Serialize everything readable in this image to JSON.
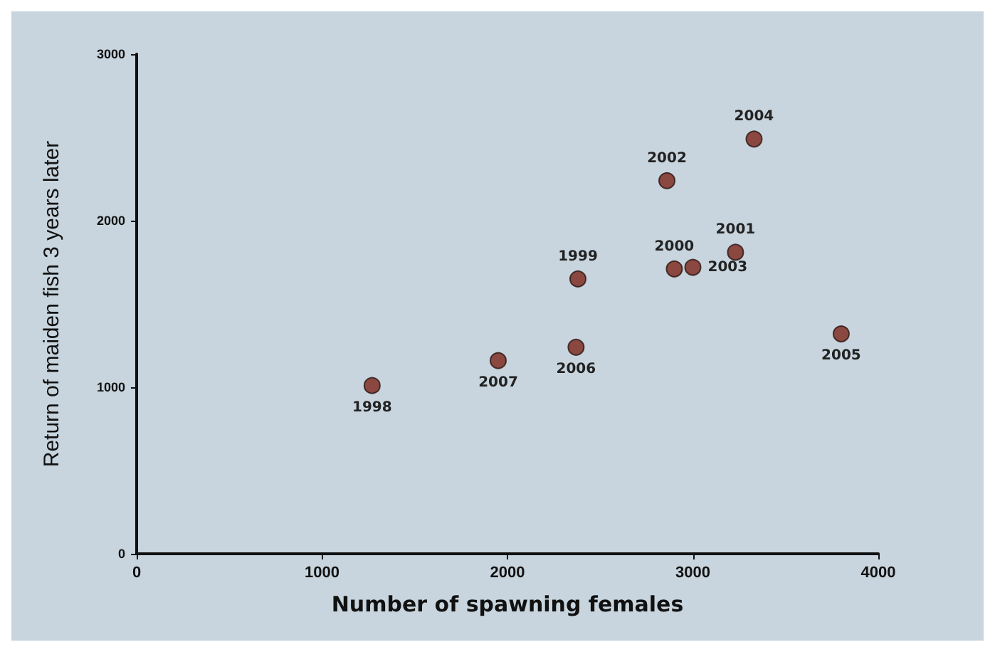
{
  "chart_data": {
    "type": "scatter",
    "xlabel": "Number of spawning females",
    "ylabel": "Return of maiden fish 3 years later",
    "series": [
      {
        "color": "#7a2418",
        "x": [
          1270,
          2380,
          2900,
          3230,
          2860,
          3000,
          3330,
          3800,
          2370,
          1950
        ],
        "values": [
          1010,
          1650,
          1710,
          1810,
          2240,
          1720,
          2490,
          1320,
          1240,
          1160
        ]
      }
    ],
    "annotations": [
      {
        "text": "1998",
        "x": 1270,
        "y": 1010
      },
      {
        "text": "1999",
        "x": 2380,
        "y": 1650
      },
      {
        "text": "2000",
        "x": 2900,
        "y": 1710
      },
      {
        "text": "2001",
        "x": 3230,
        "y": 1810
      },
      {
        "text": "2002",
        "x": 2860,
        "y": 2240
      },
      {
        "text": "2003",
        "x": 3000,
        "y": 1720
      },
      {
        "text": "2004",
        "x": 3330,
        "y": 2490
      },
      {
        "text": "2005",
        "x": 3800,
        "y": 1320
      },
      {
        "text": "2006",
        "x": 2370,
        "y": 1240
      },
      {
        "text": "2007",
        "x": 1950,
        "y": 1160
      }
    ],
    "xlim": [
      0,
      4000
    ],
    "xticks": [
      0,
      1000,
      2000,
      3000,
      4000
    ],
    "ylim": [
      0,
      3000
    ],
    "yticks": [
      0,
      1000,
      2000,
      3000
    ],
    "grid": false,
    "marker": "circle"
  }
}
